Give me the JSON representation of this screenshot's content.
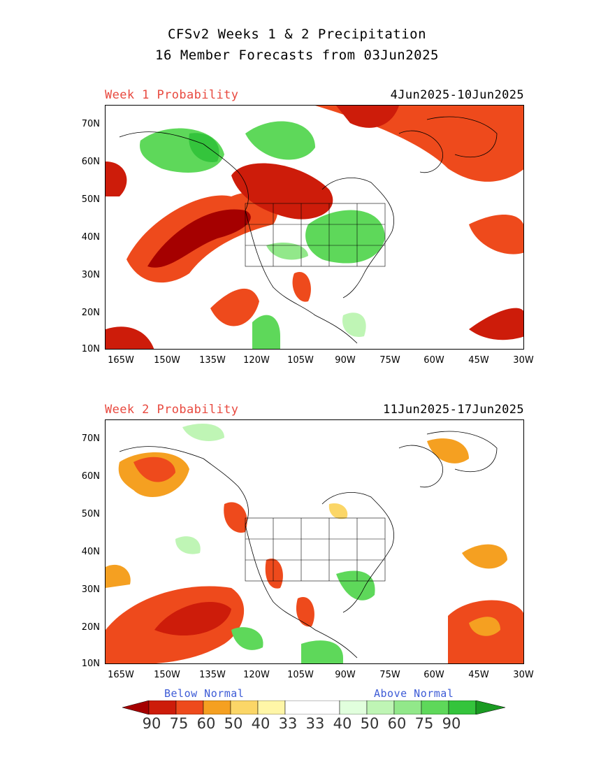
{
  "header": {
    "title_line1": "CFSv2 Weeks 1 & 2 Precipitation",
    "title_line2": "16 Member Forecasts from 03Jun2025"
  },
  "panels": [
    {
      "label": "Week 1 Probability",
      "dates": "4Jun2025-10Jun2025"
    },
    {
      "label": "Week 2 Probability",
      "dates": "11Jun2025-17Jun2025"
    }
  ],
  "axes": {
    "lat_ticks": [
      "70N",
      "60N",
      "50N",
      "40N",
      "30N",
      "20N",
      "10N"
    ],
    "lon_ticks": [
      "165W",
      "150W",
      "135W",
      "120W",
      "105W",
      "90W",
      "75W",
      "60W",
      "45W",
      "30W"
    ]
  },
  "legend": {
    "below_label": "Below Normal",
    "above_label": "Above Normal",
    "values": [
      "90",
      "75",
      "60",
      "50",
      "40",
      "33",
      "33",
      "40",
      "50",
      "60",
      "75",
      "90"
    ],
    "colors": {
      "below_90": "#a50000",
      "below_75": "#cd1c0a",
      "below_60": "#ee4a1c",
      "below_50": "#f5a021",
      "below_40": "#fbd667",
      "below_33": "#fff6a7",
      "neutral": "#ffffff",
      "above_33": "#e1ffdd",
      "above_40": "#bff5b5",
      "above_50": "#92e88a",
      "above_60": "#5ed85a",
      "above_75": "#34c43c",
      "above_90": "#1a9a22"
    }
  }
}
